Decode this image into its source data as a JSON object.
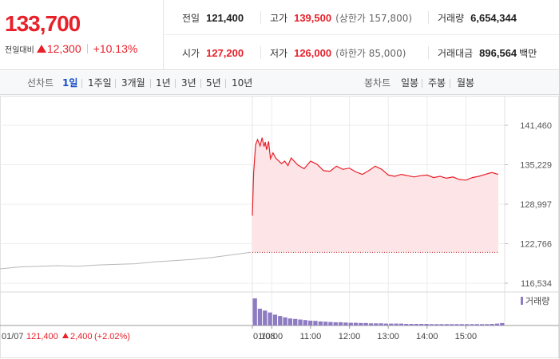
{
  "summary": {
    "price": "133,700",
    "change_label": "전일대비",
    "change_amount": "12,300",
    "change_percent": "+10.13%",
    "prev_close_label": "전일",
    "prev_close": "121,400",
    "high_label": "고가",
    "high": "139,500",
    "upper_limit": "(상한가 157,800)",
    "volume_label": "거래량",
    "volume": "6,654,344",
    "open_label": "시가",
    "open": "127,200",
    "low_label": "저가",
    "low": "126,000",
    "lower_limit": "(하한가 85,000)",
    "trade_value_label": "거래대금",
    "trade_value": "896,564",
    "trade_value_unit": "백만"
  },
  "period_bar": {
    "line_chart_label": "선차트",
    "line_options": [
      "1일",
      "1주일",
      "3개월",
      "1년",
      "3년",
      "5년",
      "10년"
    ],
    "active": "1일",
    "candle_label": "봉차트",
    "candle_options": [
      "일봉",
      "주봉",
      "월봉"
    ]
  },
  "colors": {
    "up": "#e8202a",
    "fill": "#fde4e6",
    "prev_line": "#b8b8b8",
    "volume": "#8e7cc3",
    "active_tab": "#1a4fc9"
  },
  "chart_data": {
    "type": "line",
    "y_ticks": [
      "141,460",
      "135,229",
      "128,997",
      "122,766",
      "116,534"
    ],
    "ylim": [
      116534,
      141460
    ],
    "x_labels": [
      "01/07",
      "01/08",
      "10:00",
      "11:00",
      "12:00",
      "13:00",
      "14:00",
      "15:00"
    ],
    "baseline": 121400,
    "prev_day": {
      "label": "01/07",
      "close": "121,400",
      "change": "2,400",
      "change_pct": "(+2.02%)",
      "times": [
        0,
        30,
        60,
        90,
        120,
        150,
        180,
        210,
        240,
        270,
        300,
        330,
        360,
        390
      ],
      "values": [
        118800,
        119100,
        119200,
        119300,
        119200,
        119400,
        119500,
        119600,
        119900,
        120100,
        120300,
        120600,
        121000,
        121400
      ]
    },
    "today": {
      "label": "01/08",
      "times": [
        0,
        2,
        5,
        8,
        12,
        15,
        18,
        20,
        22,
        25,
        28,
        32,
        36,
        40,
        45,
        50,
        55,
        60,
        70,
        80,
        90,
        100,
        110,
        120,
        130,
        140,
        150,
        160,
        170,
        180,
        190,
        200,
        210,
        220,
        230,
        240,
        250,
        260,
        270,
        280,
        290,
        300,
        310,
        320,
        330,
        340,
        350,
        360,
        370,
        380
      ],
      "values": [
        127200,
        134000,
        138400,
        139200,
        138200,
        139500,
        138100,
        138800,
        137600,
        138900,
        136200,
        137100,
        136300,
        135900,
        135400,
        135800,
        135100,
        136300,
        135200,
        134600,
        135800,
        135300,
        134300,
        134200,
        135000,
        134500,
        134700,
        134100,
        133700,
        134300,
        135000,
        134500,
        133600,
        133400,
        133700,
        133500,
        133300,
        133500,
        133600,
        133200,
        133400,
        133100,
        133300,
        132900,
        132800,
        133200,
        133400,
        133700,
        134000,
        133700
      ]
    },
    "volume_label": "거래량",
    "volume_series": [
      100,
      62,
      55,
      48,
      40,
      35,
      30,
      26,
      24,
      22,
      20,
      18,
      17,
      15,
      14,
      13,
      12,
      12,
      11,
      10,
      10,
      9,
      9,
      8,
      8,
      8,
      7,
      7,
      7,
      7,
      6,
      6,
      6,
      6,
      6,
      5,
      5,
      5,
      5,
      5,
      5,
      5,
      5,
      5,
      5,
      5,
      5,
      6,
      7,
      9
    ]
  }
}
